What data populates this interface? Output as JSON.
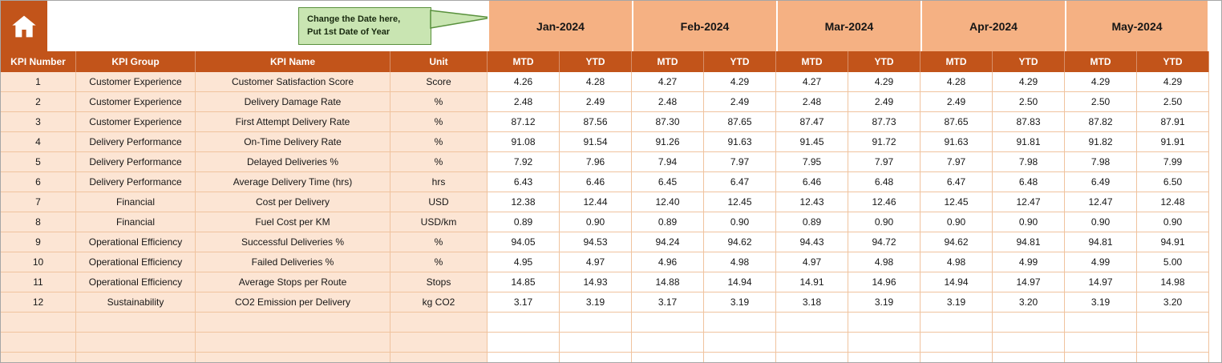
{
  "callout": {
    "line1": "Change the Date here,",
    "line2": "Put 1st Date of Year"
  },
  "table": {
    "left_headers": [
      "KPI Number",
      "KPI Group",
      "KPI Name",
      "Unit"
    ],
    "months": [
      "Jan-2024",
      "Feb-2024",
      "Mar-2024",
      "Apr-2024",
      "May-2024"
    ],
    "period_headers": [
      "MTD",
      "YTD"
    ],
    "rows": [
      {
        "kpi_number": "1",
        "kpi_group": "Customer Experience",
        "kpi_name": "Customer Satisfaction Score",
        "unit": "Score",
        "values": [
          "4.26",
          "4.28",
          "4.27",
          "4.29",
          "4.27",
          "4.29",
          "4.28",
          "4.29",
          "4.29",
          "4.29"
        ]
      },
      {
        "kpi_number": "2",
        "kpi_group": "Customer Experience",
        "kpi_name": "Delivery Damage Rate",
        "unit": "%",
        "values": [
          "2.48",
          "2.49",
          "2.48",
          "2.49",
          "2.48",
          "2.49",
          "2.49",
          "2.50",
          "2.50",
          "2.50"
        ]
      },
      {
        "kpi_number": "3",
        "kpi_group": "Customer Experience",
        "kpi_name": "First Attempt Delivery Rate",
        "unit": "%",
        "values": [
          "87.12",
          "87.56",
          "87.30",
          "87.65",
          "87.47",
          "87.73",
          "87.65",
          "87.83",
          "87.82",
          "87.91"
        ]
      },
      {
        "kpi_number": "4",
        "kpi_group": "Delivery Performance",
        "kpi_name": "On-Time Delivery Rate",
        "unit": "%",
        "values": [
          "91.08",
          "91.54",
          "91.26",
          "91.63",
          "91.45",
          "91.72",
          "91.63",
          "91.81",
          "91.82",
          "91.91"
        ]
      },
      {
        "kpi_number": "5",
        "kpi_group": "Delivery Performance",
        "kpi_name": "Delayed Deliveries %",
        "unit": "%",
        "values": [
          "7.92",
          "7.96",
          "7.94",
          "7.97",
          "7.95",
          "7.97",
          "7.97",
          "7.98",
          "7.98",
          "7.99"
        ]
      },
      {
        "kpi_number": "6",
        "kpi_group": "Delivery Performance",
        "kpi_name": "Average Delivery Time (hrs)",
        "unit": "hrs",
        "values": [
          "6.43",
          "6.46",
          "6.45",
          "6.47",
          "6.46",
          "6.48",
          "6.47",
          "6.48",
          "6.49",
          "6.50"
        ]
      },
      {
        "kpi_number": "7",
        "kpi_group": "Financial",
        "kpi_name": "Cost per Delivery",
        "unit": "USD",
        "values": [
          "12.38",
          "12.44",
          "12.40",
          "12.45",
          "12.43",
          "12.46",
          "12.45",
          "12.47",
          "12.47",
          "12.48"
        ]
      },
      {
        "kpi_number": "8",
        "kpi_group": "Financial",
        "kpi_name": "Fuel Cost per KM",
        "unit": "USD/km",
        "values": [
          "0.89",
          "0.90",
          "0.89",
          "0.90",
          "0.89",
          "0.90",
          "0.90",
          "0.90",
          "0.90",
          "0.90"
        ]
      },
      {
        "kpi_number": "9",
        "kpi_group": "Operational Efficiency",
        "kpi_name": "Successful Deliveries %",
        "unit": "%",
        "values": [
          "94.05",
          "94.53",
          "94.24",
          "94.62",
          "94.43",
          "94.72",
          "94.62",
          "94.81",
          "94.81",
          "94.91"
        ]
      },
      {
        "kpi_number": "10",
        "kpi_group": "Operational Efficiency",
        "kpi_name": "Failed Deliveries %",
        "unit": "%",
        "values": [
          "4.95",
          "4.97",
          "4.96",
          "4.98",
          "4.97",
          "4.98",
          "4.98",
          "4.99",
          "4.99",
          "5.00"
        ]
      },
      {
        "kpi_number": "11",
        "kpi_group": "Operational Efficiency",
        "kpi_name": "Average Stops per Route",
        "unit": "Stops",
        "values": [
          "14.85",
          "14.93",
          "14.88",
          "14.94",
          "14.91",
          "14.96",
          "14.94",
          "14.97",
          "14.97",
          "14.98"
        ]
      },
      {
        "kpi_number": "12",
        "kpi_group": "Sustainability",
        "kpi_name": "CO2 Emission per Delivery",
        "unit": "kg CO2",
        "values": [
          "3.17",
          "3.19",
          "3.17",
          "3.19",
          "3.18",
          "3.19",
          "3.19",
          "3.20",
          "3.19",
          "3.20"
        ]
      }
    ],
    "empty_row_count": 3
  },
  "colors": {
    "header_dark": "#C2541A",
    "month_band": "#F5B183",
    "row_tint": "#FCE5D4",
    "grid_line": "#F0C39E",
    "callout_fill": "#C9E5B2",
    "callout_border": "#59913D"
  }
}
